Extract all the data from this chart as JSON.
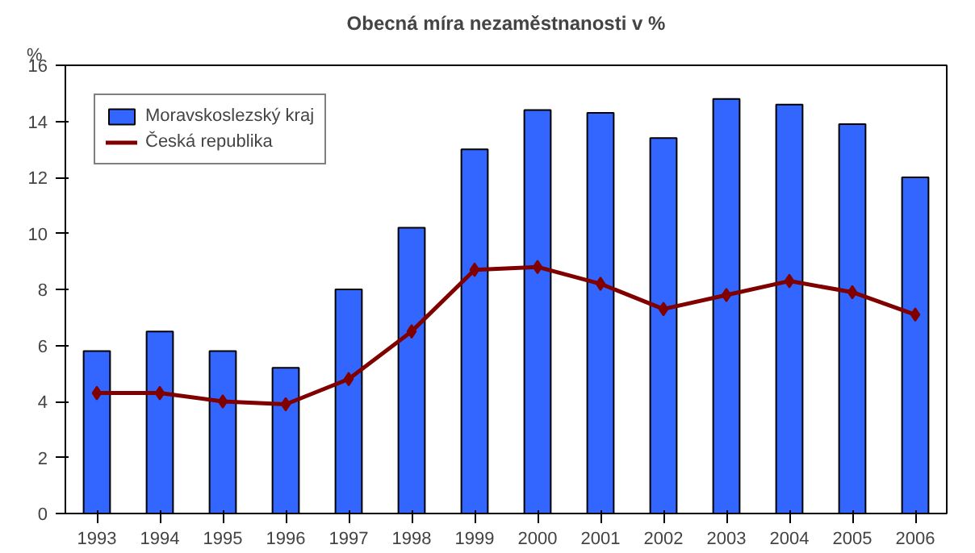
{
  "chart_data": {
    "type": "bar",
    "title": "Obecná míra nezaměstnanosti v %",
    "ylabel": "%",
    "categories": [
      "1993",
      "1994",
      "1995",
      "1996",
      "1997",
      "1998",
      "1999",
      "2000",
      "2001",
      "2002",
      "2003",
      "2004",
      "2005",
      "2006"
    ],
    "series": [
      {
        "name": "Moravskoslezský kraj",
        "color": "#3366ff",
        "values": [
          5.8,
          6.5,
          5.8,
          5.2,
          8.0,
          10.2,
          13.0,
          14.4,
          14.3,
          13.4,
          14.8,
          14.6,
          13.9,
          12.0
        ]
      },
      {
        "name": "Česká republika",
        "color": "#800000",
        "type": "line",
        "marker": "diamond",
        "values": [
          4.3,
          4.3,
          4.0,
          3.9,
          4.8,
          6.5,
          8.7,
          8.8,
          8.2,
          7.3,
          7.8,
          8.3,
          7.9,
          7.1
        ]
      }
    ],
    "ylim": [
      0,
      16
    ],
    "yticks": [
      0,
      2,
      4,
      6,
      8,
      10,
      12,
      14,
      16
    ],
    "grid": false,
    "legend": "top left"
  }
}
